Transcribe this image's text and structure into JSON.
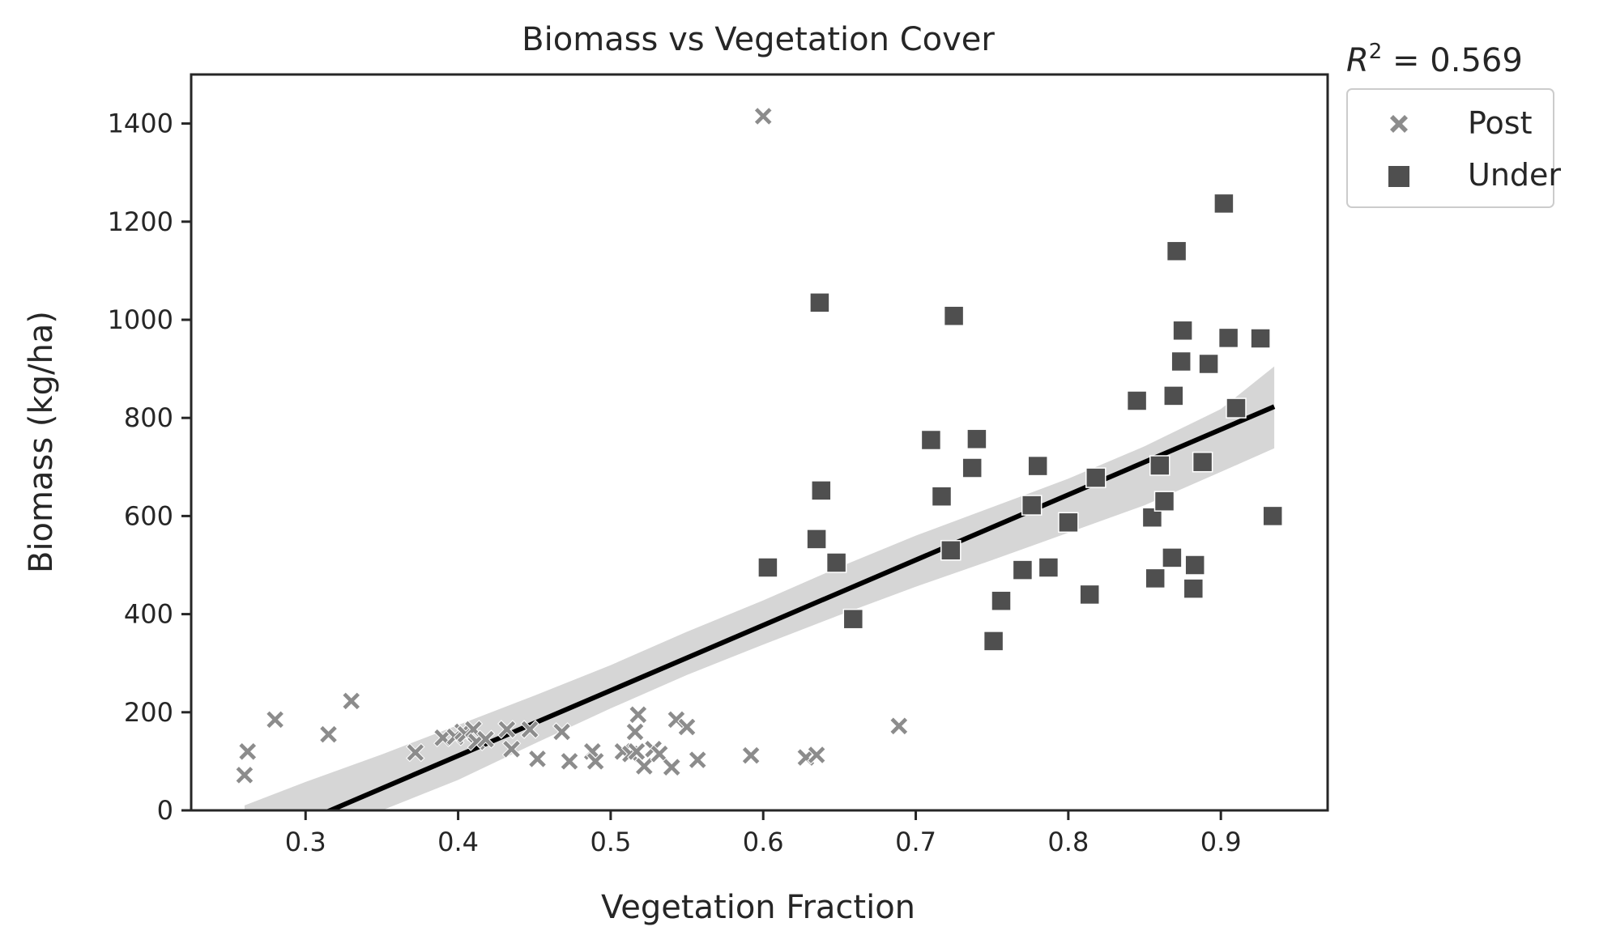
{
  "chart_data": {
    "type": "scatter",
    "title": "Biomass vs Vegetation Cover",
    "xlabel": "Vegetation Fraction",
    "ylabel": "Biomass (kg/ha)",
    "xlim": [
      0.225,
      0.97
    ],
    "ylim": [
      0,
      1500
    ],
    "xticks": [
      0.3,
      0.4,
      0.5,
      0.6,
      0.7,
      0.8,
      0.9
    ],
    "xtick_labels": [
      "0.3",
      "0.4",
      "0.5",
      "0.6",
      "0.7",
      "0.8",
      "0.9"
    ],
    "yticks": [
      0,
      200,
      400,
      600,
      800,
      1000,
      1200,
      1400
    ],
    "ytick_labels": [
      "0",
      "200",
      "400",
      "600",
      "800",
      "1000",
      "1200",
      "1400"
    ],
    "grid": false,
    "annotation": {
      "r2_label": "R",
      "r2_sup": "2",
      "r2_value": " = 0.569"
    },
    "legend": {
      "placement": "outside-top-right",
      "entries": [
        {
          "label": "Post",
          "marker": "x",
          "color": "#8c8c8c"
        },
        {
          "label": "Under",
          "marker": "square",
          "color": "#4f4f4f"
        }
      ]
    },
    "series": [
      {
        "name": "Post",
        "marker": "x",
        "color": "#8c8c8c",
        "points": [
          [
            0.26,
            72
          ],
          [
            0.262,
            120
          ],
          [
            0.28,
            185
          ],
          [
            0.315,
            155
          ],
          [
            0.33,
            223
          ],
          [
            0.372,
            118
          ],
          [
            0.39,
            148
          ],
          [
            0.398,
            150
          ],
          [
            0.403,
            160
          ],
          [
            0.405,
            155
          ],
          [
            0.41,
            165
          ],
          [
            0.412,
            140
          ],
          [
            0.418,
            145
          ],
          [
            0.432,
            165
          ],
          [
            0.435,
            125
          ],
          [
            0.447,
            165
          ],
          [
            0.452,
            105
          ],
          [
            0.468,
            160
          ],
          [
            0.473,
            100
          ],
          [
            0.488,
            120
          ],
          [
            0.49,
            100
          ],
          [
            0.508,
            120
          ],
          [
            0.513,
            115
          ],
          [
            0.516,
            160
          ],
          [
            0.517,
            120
          ],
          [
            0.518,
            195
          ],
          [
            0.522,
            90
          ],
          [
            0.528,
            125
          ],
          [
            0.532,
            115
          ],
          [
            0.54,
            88
          ],
          [
            0.543,
            185
          ],
          [
            0.55,
            170
          ],
          [
            0.557,
            103
          ],
          [
            0.592,
            112
          ],
          [
            0.6,
            1415
          ],
          [
            0.628,
            108
          ],
          [
            0.635,
            113
          ],
          [
            0.689,
            172
          ]
        ]
      },
      {
        "name": "Under",
        "marker": "square",
        "color": "#4f4f4f",
        "points": [
          [
            0.603,
            495
          ],
          [
            0.635,
            553
          ],
          [
            0.637,
            1035
          ],
          [
            0.638,
            652
          ],
          [
            0.648,
            505
          ],
          [
            0.659,
            390
          ],
          [
            0.71,
            755
          ],
          [
            0.717,
            640
          ],
          [
            0.723,
            530
          ],
          [
            0.725,
            1008
          ],
          [
            0.737,
            698
          ],
          [
            0.74,
            757
          ],
          [
            0.751,
            345
          ],
          [
            0.756,
            427
          ],
          [
            0.77,
            490
          ],
          [
            0.776,
            622
          ],
          [
            0.78,
            702
          ],
          [
            0.787,
            495
          ],
          [
            0.8,
            587
          ],
          [
            0.814,
            440
          ],
          [
            0.818,
            678
          ],
          [
            0.845,
            835
          ],
          [
            0.855,
            597
          ],
          [
            0.857,
            473
          ],
          [
            0.86,
            703
          ],
          [
            0.863,
            630
          ],
          [
            0.868,
            515
          ],
          [
            0.869,
            845
          ],
          [
            0.871,
            1140
          ],
          [
            0.874,
            915
          ],
          [
            0.875,
            978
          ],
          [
            0.882,
            452
          ],
          [
            0.883,
            500
          ],
          [
            0.888,
            710
          ],
          [
            0.892,
            910
          ],
          [
            0.902,
            1237
          ],
          [
            0.905,
            963
          ],
          [
            0.91,
            820
          ],
          [
            0.926,
            962
          ],
          [
            0.934,
            600
          ]
        ]
      }
    ],
    "fit_line": {
      "x": [
        0.305,
        0.935
      ],
      "y": [
        -15,
        823
      ],
      "color": "#000000"
    },
    "confidence_band": {
      "x": [
        0.26,
        0.3,
        0.35,
        0.4,
        0.45,
        0.5,
        0.55,
        0.6,
        0.65,
        0.7,
        0.75,
        0.8,
        0.85,
        0.9,
        0.935
      ],
      "lower": [
        -140,
        -80,
        -12,
        62,
        136,
        208,
        276,
        338,
        398,
        456,
        510,
        566,
        622,
        690,
        738
      ],
      "upper": [
        10,
        58,
        114,
        174,
        234,
        296,
        364,
        428,
        496,
        560,
        618,
        676,
        742,
        818,
        905
      ],
      "color": "#d6d6d6"
    }
  }
}
